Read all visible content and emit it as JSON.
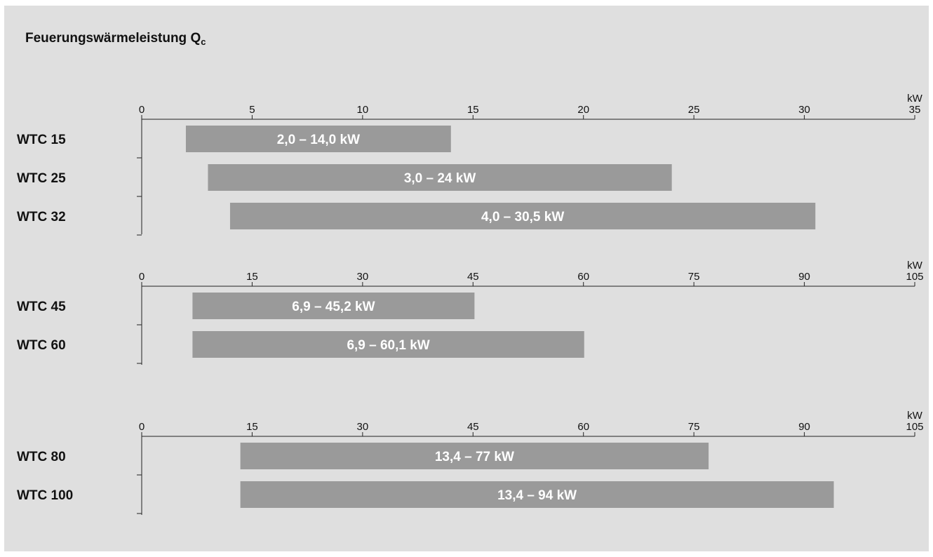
{
  "title": {
    "text": "Feuerungswärmeleistung Q",
    "subscript": "c"
  },
  "colors": {
    "background": "#dfdfdf",
    "bar": "#9a9a9a",
    "axis": "#222222",
    "bar_text": "#ffffff",
    "text": "#111111"
  },
  "chart_data": [
    {
      "type": "bar",
      "orientation": "horizontal",
      "unit": "kW",
      "xlim": [
        0,
        35
      ],
      "ticks": [
        0,
        5,
        10,
        15,
        20,
        25,
        30,
        35
      ],
      "categories": [
        "WTC 15",
        "WTC 25",
        "WTC 32"
      ],
      "ranges": [
        [
          2.0,
          14.0
        ],
        [
          3.0,
          24
        ],
        [
          4.0,
          30.5
        ]
      ],
      "bar_labels": [
        "2,0 – 14,0 kW",
        "3,0 – 24 kW",
        "4,0 – 30,5 kW"
      ]
    },
    {
      "type": "bar",
      "orientation": "horizontal",
      "unit": "kW",
      "xlim": [
        0,
        105
      ],
      "ticks": [
        0,
        15,
        30,
        45,
        60,
        75,
        90,
        105
      ],
      "categories": [
        "WTC 45",
        "WTC 60"
      ],
      "ranges": [
        [
          6.9,
          45.2
        ],
        [
          6.9,
          60.1
        ]
      ],
      "bar_labels": [
        "6,9 – 45,2 kW",
        "6,9 – 60,1 kW"
      ]
    },
    {
      "type": "bar",
      "orientation": "horizontal",
      "unit": "kW",
      "xlim": [
        0,
        105
      ],
      "ticks": [
        0,
        15,
        30,
        45,
        60,
        75,
        90,
        105
      ],
      "categories": [
        "WTC 80",
        "WTC 100"
      ],
      "ranges": [
        [
          13.4,
          77
        ],
        [
          13.4,
          94
        ]
      ],
      "bar_labels": [
        "13,4 – 77 kW",
        "13,4 – 94 kW"
      ]
    }
  ]
}
